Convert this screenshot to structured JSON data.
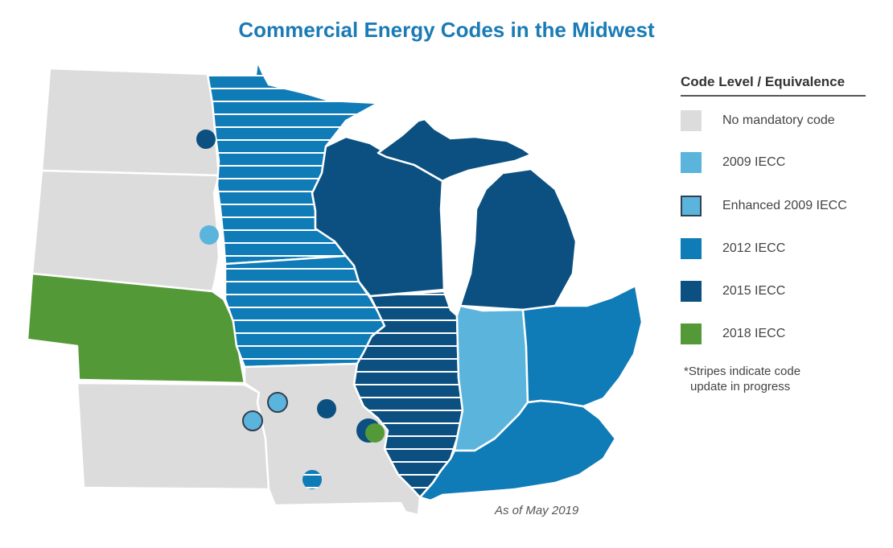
{
  "title": "Commercial Energy Codes in the Midwest",
  "legend": {
    "title": "Code Level / Equivalence",
    "items": [
      {
        "label": "No mandatory code",
        "color": "#dcdcdc"
      },
      {
        "label": "2009 IECC",
        "color": "#5bb4dc"
      },
      {
        "label": "Enhanced 2009 IECC",
        "color": "#5bb4dc",
        "border": "#333f4f"
      },
      {
        "label": "2012 IECC",
        "color": "#0f7bb7"
      },
      {
        "label": "2015 IECC",
        "color": "#0b5080"
      },
      {
        "label": "2018 IECC",
        "color": "#549937"
      }
    ],
    "note_line1": "*Stripes indicate code",
    "note_line2": "update in progress"
  },
  "as_of": "As of May 2019",
  "colors": {
    "none": "#dcdcdc",
    "iecc2009": "#5bb4dc",
    "iecc2012": "#0f7bb7",
    "iecc2015": "#0b5080",
    "iecc2018": "#549937",
    "enhanced_border": "#333f4f",
    "title": "#1a7bb5"
  },
  "states": [
    {
      "code": "ND",
      "level": "none",
      "striped": false
    },
    {
      "code": "SD",
      "level": "none",
      "striped": false
    },
    {
      "code": "NE",
      "level": "iecc2018",
      "striped": false
    },
    {
      "code": "KS",
      "level": "none",
      "striped": false
    },
    {
      "code": "MN",
      "level": "iecc2012",
      "striped": true
    },
    {
      "code": "IA",
      "level": "iecc2012",
      "striped": true
    },
    {
      "code": "MO",
      "level": "none",
      "striped": false
    },
    {
      "code": "WI",
      "level": "iecc2015",
      "striped": false
    },
    {
      "code": "IL",
      "level": "iecc2015",
      "striped": true
    },
    {
      "code": "MI",
      "level": "iecc2015",
      "striped": false
    },
    {
      "code": "IN",
      "level": "iecc2009",
      "striped": false
    },
    {
      "code": "OH",
      "level": "iecc2012",
      "striped": false
    },
    {
      "code": "KY",
      "level": "iecc2012",
      "striped": false
    }
  ],
  "city_markers": [
    {
      "state": "ND",
      "level": "iecc2015",
      "enhanced": false,
      "striped": false
    },
    {
      "state": "SD",
      "level": "iecc2009",
      "enhanced": false,
      "striped": false
    },
    {
      "state": "MO",
      "level": "iecc2009",
      "enhanced": true,
      "striped": false
    },
    {
      "state": "KS",
      "level": "iecc2009",
      "enhanced": true,
      "striped": false
    },
    {
      "state": "MO",
      "level": "iecc2015",
      "enhanced": false,
      "striped": false
    },
    {
      "state": "MO",
      "level": "iecc2015",
      "enhanced": false,
      "striped": false
    },
    {
      "state": "MO",
      "level": "iecc2018",
      "enhanced": false,
      "striped": false
    },
    {
      "state": "MO",
      "level": "iecc2012",
      "enhanced": false,
      "striped": true
    }
  ]
}
